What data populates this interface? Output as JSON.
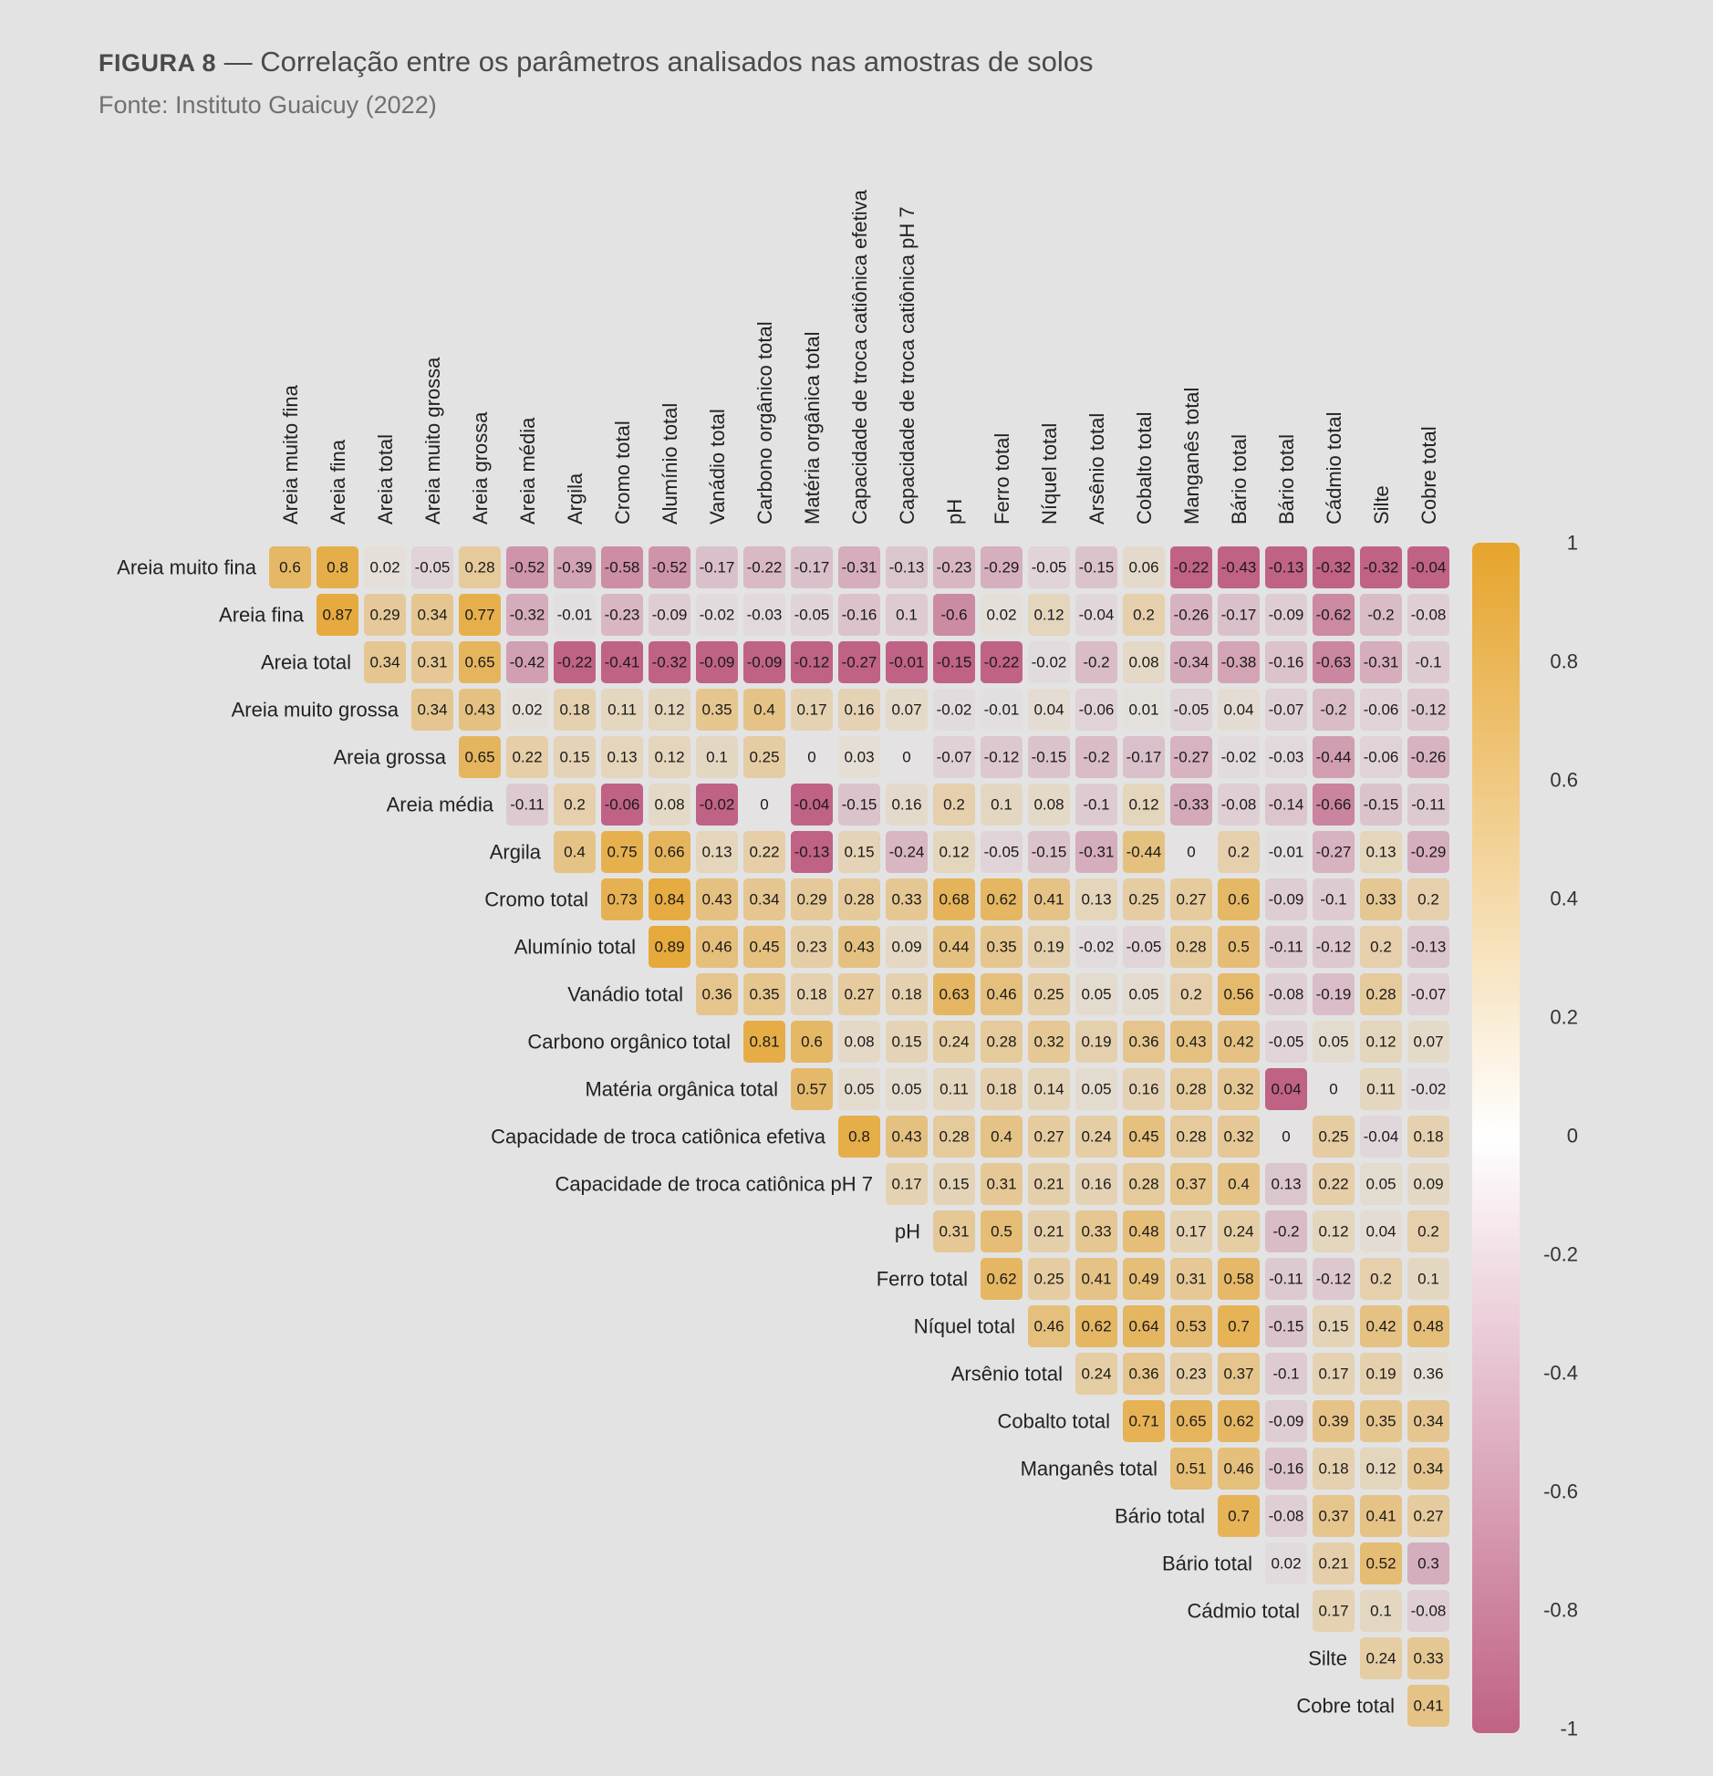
{
  "header": {
    "figure_tag": "FIGURA 8",
    "title": " — Correlação entre os parâmetros analisados nas amostras de solos",
    "source": "Fonte: Instituto Guaicuy (2022)"
  },
  "chart_data": {
    "type": "heatmap",
    "title": "Correlação entre os parâmetros analisados nas amostras de solos",
    "subtitle": "Fonte: Instituto Guaicuy (2022)",
    "columns": [
      "Areia muito fina",
      "Areia fina",
      "Areia total",
      "Areia muito grossa",
      "Areia grossa",
      "Areia média",
      "Argila",
      "Cromo total",
      "Alumínio total",
      "Vanádio total",
      "Carbono orgânico total",
      "Matéria orgânica total",
      "Capacidade de troca catiônica efetiva",
      "Capacidade de troca catiônica pH 7",
      "pH",
      "Ferro total",
      "Níquel total",
      "Arsênio total",
      "Cobalto total",
      "Manganês total",
      "Bário total",
      "Bário total",
      "Cádmio total",
      "Silte",
      "Cobre total"
    ],
    "rows": [
      {
        "label": "Areia muito fina",
        "start": 0,
        "values": [
          0.6,
          0.8,
          0.02,
          -0.05,
          0.28,
          -0.52,
          -0.39,
          -0.58,
          -0.52,
          -0.17,
          -0.22,
          -0.17,
          -0.31,
          -0.13,
          -0.23,
          -0.29,
          -0.05,
          -0.15,
          0.06,
          -0.22,
          -0.43,
          -0.13,
          -0.32,
          -0.32,
          -0.04
        ],
        "colors": [
          0.6,
          0.8,
          0.02,
          -0.05,
          0.28,
          -0.52,
          -0.39,
          -0.58,
          -0.52,
          -0.17,
          -0.22,
          -0.17,
          -0.31,
          -0.13,
          -0.23,
          -0.29,
          -0.05,
          -0.15,
          0.06,
          -1,
          -1,
          -1,
          -1,
          -1,
          -1
        ]
      },
      {
        "label": "Areia fina",
        "start": 1,
        "values": [
          0.87,
          0.29,
          0.34,
          0.77,
          -0.32,
          -0.01,
          -0.23,
          -0.09,
          -0.02,
          -0.03,
          -0.05,
          -0.16,
          0.1,
          -0.6,
          0.02,
          0.12,
          -0.04,
          0.2,
          -0.26,
          -0.17,
          -0.09,
          -0.62,
          -0.2,
          -0.08
        ],
        "colors": [
          0.87,
          0.29,
          0.34,
          0.77,
          -0.32,
          -0.01,
          -0.23,
          -0.09,
          -0.02,
          -0.03,
          -0.05,
          -0.16,
          -0.1,
          -0.6,
          0.02,
          0.12,
          -0.04,
          0.2,
          -0.26,
          -0.17,
          -0.09,
          -0.62,
          -0.2,
          -0.08
        ]
      },
      {
        "label": "Areia total",
        "start": 2,
        "values": [
          0.34,
          0.31,
          0.65,
          -0.42,
          -0.22,
          -0.41,
          -0.32,
          -0.09,
          -0.09,
          -0.12,
          -0.27,
          -0.01,
          -0.15,
          -0.22,
          -0.02,
          -0.2,
          0.08,
          -0.34,
          -0.38,
          -0.16,
          -0.63,
          -0.31,
          -0.1
        ],
        "colors": [
          0.34,
          0.31,
          0.65,
          -0.42,
          -1,
          -1,
          -1,
          -1,
          -1,
          -1,
          -1,
          -1,
          -1,
          -1,
          -0.02,
          -0.2,
          0.08,
          -0.34,
          -0.38,
          -0.16,
          -0.63,
          -0.31,
          -0.1
        ]
      },
      {
        "label": "Areia muito grossa",
        "start": 3,
        "values": [
          0.34,
          0.43,
          0.02,
          0.18,
          0.11,
          0.12,
          0.35,
          0.4,
          0.17,
          0.16,
          0.07,
          -0.02,
          -0.01,
          0.04,
          -0.06,
          0.01,
          -0.05,
          0.04,
          -0.07,
          -0.2,
          -0.06,
          -0.12
        ],
        "colors": [
          0.34,
          0.43,
          0.02,
          0.18,
          0.11,
          0.12,
          0.35,
          0.4,
          0.17,
          0.16,
          0.07,
          -0.02,
          -0.01,
          0.04,
          -0.06,
          0.01,
          -0.05,
          0.04,
          -0.07,
          -0.2,
          -0.06,
          -0.12
        ]
      },
      {
        "label": "Areia grossa",
        "start": 4,
        "values": [
          0.65,
          0.22,
          0.15,
          0.13,
          0.12,
          0.1,
          0.25,
          0,
          0.03,
          0,
          -0.07,
          -0.12,
          -0.15,
          -0.2,
          -0.17,
          -0.27,
          -0.02,
          -0.03,
          -0.44,
          -0.06,
          -0.26
        ],
        "colors": [
          0.65,
          0.22,
          0.15,
          0.13,
          0.12,
          0.1,
          0.25,
          0,
          0.03,
          0,
          -0.07,
          -0.12,
          -0.15,
          -0.2,
          -0.17,
          -0.27,
          -0.02,
          -0.03,
          -0.44,
          -0.06,
          -0.26
        ]
      },
      {
        "label": "Areia média",
        "start": 5,
        "values": [
          -0.11,
          0.2,
          -0.06,
          0.08,
          -0.02,
          0,
          -0.04,
          -0.15,
          0.16,
          0.2,
          0.1,
          0.08,
          -0.1,
          0.12,
          -0.33,
          -0.08,
          -0.14,
          -0.66,
          -0.15,
          -0.11
        ],
        "colors": [
          -0.11,
          0.2,
          -1,
          0.08,
          -1,
          0,
          -1,
          -0.15,
          0.06,
          0.2,
          0.1,
          0.08,
          -0.1,
          0.12,
          -0.33,
          -0.08,
          -0.14,
          -0.66,
          -0.15,
          -0.11
        ]
      },
      {
        "label": "Argila",
        "start": 6,
        "values": [
          0.4,
          0.75,
          0.66,
          0.13,
          0.22,
          -0.13,
          0.15,
          -0.24,
          0.12,
          -0.05,
          -0.15,
          -0.31,
          -0.44,
          0,
          0.2,
          -0.01,
          -0.27,
          0.13,
          -0.29
        ],
        "colors": [
          0.4,
          0.75,
          0.66,
          0.13,
          0.22,
          -1,
          0.15,
          -0.24,
          0.12,
          -0.05,
          -0.15,
          -0.31,
          0.44,
          0,
          0.2,
          -0.01,
          -0.27,
          0.13,
          -0.29
        ]
      },
      {
        "label": "Cromo total",
        "start": 7,
        "values": [
          0.73,
          0.84,
          0.43,
          0.34,
          0.29,
          0.28,
          0.33,
          0.68,
          0.62,
          0.41,
          0.13,
          0.25,
          0.27,
          0.6,
          -0.09,
          -0.1,
          0.33,
          0.2
        ],
        "colors": [
          0.73,
          0.84,
          0.43,
          0.34,
          0.29,
          0.28,
          0.33,
          0.68,
          0.62,
          0.41,
          0.13,
          0.25,
          0.27,
          0.6,
          -0.09,
          -0.1,
          0.33,
          0.2
        ]
      },
      {
        "label": "Alumínio total",
        "start": 8,
        "values": [
          0.89,
          0.46,
          0.45,
          0.23,
          0.43,
          0.09,
          0.44,
          0.35,
          0.19,
          -0.02,
          -0.05,
          0.28,
          0.5,
          -0.11,
          -0.12,
          0.2,
          -0.13
        ],
        "colors": [
          0.89,
          0.46,
          0.45,
          0.23,
          0.43,
          0.09,
          0.44,
          0.35,
          0.19,
          -0.02,
          -0.05,
          0.28,
          0.5,
          -0.11,
          -0.12,
          0.2,
          -0.13
        ]
      },
      {
        "label": "Vanádio total",
        "start": 9,
        "values": [
          0.36,
          0.35,
          0.18,
          0.27,
          0.18,
          0.63,
          0.46,
          0.25,
          0.05,
          0.05,
          0.2,
          0.56,
          -0.08,
          -0.19,
          0.28,
          -0.07
        ],
        "colors": [
          0.36,
          0.35,
          0.18,
          0.27,
          0.18,
          0.63,
          0.46,
          0.25,
          0.05,
          0.05,
          0.2,
          0.56,
          -0.08,
          -0.19,
          0.28,
          -0.07
        ]
      },
      {
        "label": "Carbono orgânico total",
        "start": 10,
        "values": [
          0.81,
          0.6,
          0.08,
          0.15,
          0.24,
          0.28,
          0.32,
          0.19,
          0.36,
          0.43,
          0.42,
          -0.05,
          0.05,
          0.12,
          0.07
        ],
        "colors": [
          0.81,
          0.6,
          0.08,
          0.15,
          0.24,
          0.28,
          0.32,
          0.19,
          0.36,
          0.43,
          0.42,
          -0.05,
          0.05,
          0.12,
          0.07
        ]
      },
      {
        "label": "Matéria orgânica total",
        "start": 11,
        "values": [
          0.57,
          0.05,
          0.05,
          0.11,
          0.18,
          0.14,
          0.05,
          0.16,
          0.28,
          0.32,
          0.04,
          0,
          0.11,
          -0.02
        ],
        "colors": [
          0.57,
          0.05,
          0.05,
          0.11,
          0.18,
          0.14,
          0.05,
          0.16,
          0.28,
          0.32,
          -1,
          0,
          0.11,
          -0.02
        ]
      },
      {
        "label": "Capacidade de troca catiônica efetiva",
        "start": 12,
        "values": [
          0.8,
          0.43,
          0.28,
          0.4,
          0.27,
          0.24,
          0.45,
          0.28,
          0.32,
          0,
          0.25,
          -0.04,
          0.18
        ],
        "colors": [
          0.8,
          0.43,
          0.28,
          0.4,
          0.27,
          0.24,
          0.45,
          0.28,
          0.32,
          0,
          0.25,
          -0.04,
          0.18
        ]
      },
      {
        "label": "Capacidade de troca catiônica pH 7",
        "start": 13,
        "values": [
          0.17,
          0.15,
          0.31,
          0.21,
          0.16,
          0.28,
          0.37,
          0.4,
          0.13,
          0.22,
          0.05,
          0.09
        ],
        "colors": [
          0.17,
          0.15,
          0.31,
          0.21,
          0.16,
          0.28,
          0.37,
          0.4,
          -0.13,
          0.22,
          0.05,
          0.09
        ]
      },
      {
        "label": "pH",
        "start": 14,
        "values": [
          0.31,
          0.5,
          0.21,
          0.33,
          0.48,
          0.17,
          0.24,
          -0.2,
          0.12,
          0.04,
          0.2
        ],
        "colors": [
          0.31,
          0.5,
          0.21,
          0.33,
          0.48,
          0.17,
          0.24,
          -0.2,
          0.12,
          0.04,
          0.2
        ]
      },
      {
        "label": "Ferro total",
        "start": 15,
        "values": [
          0.62,
          0.25,
          0.41,
          0.49,
          0.31,
          0.58,
          -0.11,
          -0.12,
          0.2,
          0.1
        ],
        "colors": [
          0.62,
          0.25,
          0.41,
          0.49,
          0.31,
          0.58,
          -0.11,
          -0.12,
          0.2,
          0.1
        ]
      },
      {
        "label": "Níquel total",
        "start": 16,
        "values": [
          0.46,
          0.62,
          0.64,
          0.53,
          0.7,
          -0.15,
          0.15,
          0.42,
          0.48
        ],
        "colors": [
          0.46,
          0.62,
          0.64,
          0.53,
          0.7,
          -0.15,
          0.15,
          0.42,
          0.48
        ]
      },
      {
        "label": "Arsênio total",
        "start": 17,
        "values": [
          0.24,
          0.36,
          0.23,
          0.37,
          -0.1,
          0.17,
          0.19,
          0.36
        ],
        "colors": [
          0.24,
          0.36,
          0.23,
          0.37,
          -0.1,
          0.17,
          0.19,
          0.02
        ]
      },
      {
        "label": "Cobalto total",
        "start": 18,
        "values": [
          0.71,
          0.65,
          0.62,
          -0.09,
          0.39,
          0.35,
          0.34
        ],
        "colors": [
          0.71,
          0.65,
          0.62,
          -0.09,
          0.39,
          0.35,
          0.34
        ]
      },
      {
        "label": "Manganês total",
        "start": 19,
        "values": [
          0.51,
          0.46,
          -0.16,
          0.18,
          0.12,
          0.34
        ],
        "colors": [
          0.51,
          0.46,
          -0.16,
          0.18,
          0.12,
          0.34
        ]
      },
      {
        "label": "Bário total",
        "start": 20,
        "values": [
          0.7,
          -0.08,
          0.37,
          0.41,
          0.27
        ],
        "colors": [
          0.7,
          -0.08,
          0.37,
          0.41,
          0.27
        ]
      },
      {
        "label": "Bário total",
        "start": 21,
        "values": [
          0.02,
          0.21,
          0.52,
          0.3
        ],
        "colors": [
          -0.02,
          0.21,
          0.52,
          -0.3
        ]
      },
      {
        "label": "Cádmio total",
        "start": 22,
        "values": [
          0.17,
          0.1,
          -0.08
        ],
        "colors": [
          0.17,
          0.1,
          -0.08
        ]
      },
      {
        "label": "Silte",
        "start": 23,
        "values": [
          0.24,
          0.33
        ],
        "colors": [
          0.24,
          0.33
        ]
      },
      {
        "label": "Cobre total",
        "start": 24,
        "values": [
          0.41
        ],
        "colors": [
          0.41
        ]
      }
    ],
    "colorbar": {
      "range": [
        -1,
        1
      ],
      "ticks": [
        "1",
        "0.8",
        "0.6",
        "0.4",
        "0.2",
        "0",
        "-0.2",
        "-0.4",
        "-0.6",
        "-0.8",
        "-1"
      ],
      "tick_values": [
        1,
        0.8,
        0.6,
        0.4,
        0.2,
        0,
        -0.2,
        -0.4,
        -0.6,
        -0.8,
        -1
      ],
      "color_max": "#e6a42c",
      "color_mid": "#ffffff",
      "color_min": "#c06286",
      "placement": "right"
    }
  }
}
